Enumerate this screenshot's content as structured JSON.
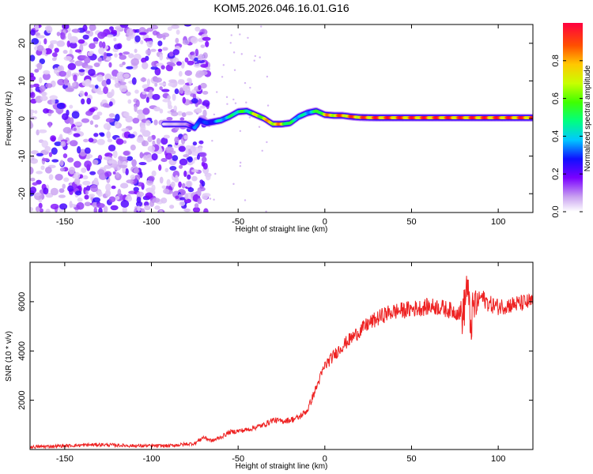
{
  "figure": {
    "title": "KOM5.2026.046.16.01.G16"
  },
  "chart_data": [
    {
      "type": "heatmap",
      "title": "KOM5.2026.046.16.01.G16",
      "xlabel": "Height of straight line (km)",
      "ylabel": "Frequency (Hz)",
      "xlim": [
        -170,
        120
      ],
      "ylim": [
        -25,
        25
      ],
      "xticks": [
        -150,
        -100,
        -50,
        0,
        50,
        100
      ],
      "yticks": [
        -20,
        -10,
        0,
        10,
        20
      ],
      "colorbar": {
        "label": "Normalized spectral amplitude",
        "range": [
          0.0,
          1.0
        ],
        "ticks": [
          "0.0",
          "0.2",
          "0.4",
          "0.6",
          "0.8"
        ],
        "tick_values": [
          0.0,
          0.2,
          0.4,
          0.6,
          0.8
        ]
      },
      "noise_region_km": [
        -170,
        -67
      ],
      "signal_track": {
        "height_km": [
          -93,
          -80,
          -75,
          -72,
          -68,
          -60,
          -55,
          -50,
          -45,
          -40,
          -35,
          -30,
          -25,
          -20,
          -15,
          -10,
          -5,
          0,
          5,
          10,
          15,
          20,
          30,
          40,
          50,
          60,
          70,
          80,
          90,
          100,
          110,
          120
        ],
        "frequency_hz": [
          -1.5,
          -1.5,
          -2.5,
          -0.5,
          -1.2,
          -0.5,
          0.5,
          1.8,
          2.0,
          1.0,
          0.0,
          -1.5,
          -1.5,
          -1.2,
          0.5,
          1.5,
          2.0,
          1.0,
          0.8,
          0.8,
          0.5,
          0.3,
          0.2,
          0.2,
          0.2,
          0.2,
          0.2,
          0.2,
          0.2,
          0.2,
          0.2,
          0.2
        ],
        "amplitude": [
          0.05,
          0.1,
          0.35,
          0.4,
          0.3,
          0.45,
          0.5,
          0.6,
          0.55,
          0.75,
          0.8,
          0.9,
          0.85,
          0.55,
          0.5,
          0.45,
          0.55,
          0.85,
          0.9,
          0.95,
          0.95,
          0.95,
          1.0,
          1.0,
          1.0,
          1.0,
          1.0,
          1.0,
          1.0,
          1.0,
          1.0,
          1.0
        ]
      }
    },
    {
      "type": "line",
      "xlabel": "Height of straight line (km)",
      "ylabel": "SNR (10 * v/v)",
      "xlim": [
        -170,
        120
      ],
      "ylim": [
        0,
        7600
      ],
      "xticks": [
        -150,
        -100,
        -50,
        0,
        50,
        100
      ],
      "yticks": [
        2000,
        4000,
        6000
      ],
      "series": [
        {
          "name": "SNR",
          "color": "#ee2222",
          "x": [
            -170,
            -150,
            -130,
            -110,
            -90,
            -75,
            -70,
            -65,
            -60,
            -55,
            -50,
            -45,
            -40,
            -35,
            -30,
            -25,
            -20,
            -15,
            -10,
            -5,
            0,
            5,
            10,
            15,
            20,
            25,
            30,
            35,
            40,
            45,
            50,
            55,
            60,
            65,
            70,
            75,
            80,
            82,
            84,
            86,
            90,
            95,
            100,
            110,
            120
          ],
          "y": [
            100,
            150,
            200,
            150,
            150,
            250,
            500,
            350,
            500,
            700,
            750,
            800,
            900,
            1000,
            1200,
            1150,
            1200,
            1300,
            1600,
            2500,
            3400,
            3800,
            4200,
            4500,
            4800,
            5100,
            5300,
            5500,
            5600,
            5650,
            5700,
            5750,
            5800,
            5800,
            5700,
            5600,
            5500,
            6800,
            5000,
            5800,
            6200,
            5900,
            5800,
            5900,
            6000
          ]
        }
      ]
    }
  ]
}
